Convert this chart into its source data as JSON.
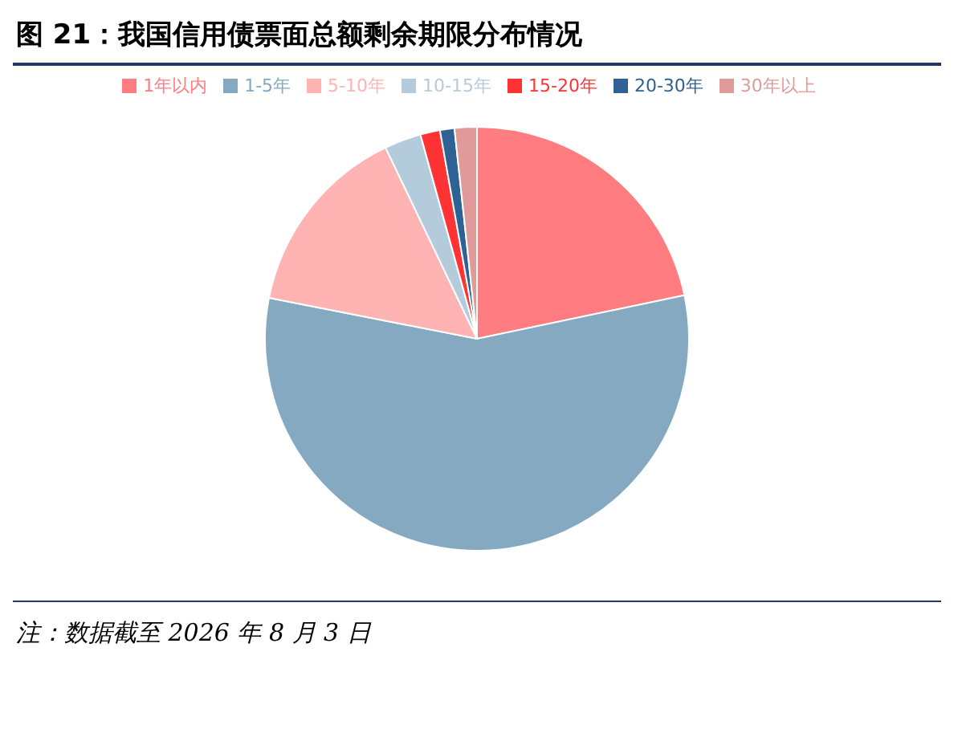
{
  "chart_data": {
    "type": "pie",
    "title": "图 21：我国信用债票面总额剩余期限分布情况",
    "categories": [
      "1年以内",
      "1-5年",
      "5-10年",
      "10-15年",
      "15-20年",
      "20-30年",
      "30年以上"
    ],
    "values": [
      21.7,
      56.4,
      14.8,
      2.8,
      1.5,
      1.1,
      1.7
    ],
    "colors": [
      "#ff7c80",
      "#84a9c0",
      "#ffb3b3",
      "#b4cbdb",
      "#ff3333",
      "#2e6294",
      "#e09a9a"
    ],
    "legend": "top",
    "annotations": [
      "注：数据截至 2026 年 8 月 3 日"
    ]
  }
}
